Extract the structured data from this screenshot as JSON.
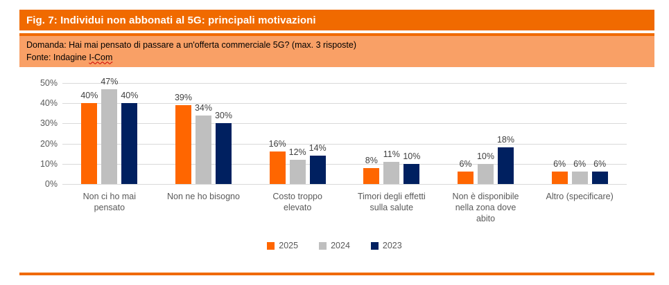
{
  "figure": {
    "title": "Fig. 7: Individui non abbonati al 5G: principali motivazioni",
    "question": "Domanda: Hai mai pensato di passare a un'offerta commerciale 5G? (max. 3 risposte)",
    "source_prefix": "Fonte: Indagine ",
    "source_word": "I-Com"
  },
  "colors": {
    "header_orange": "#f06a00",
    "subtitle_band_orange": "#f9a066",
    "bar_orange": "#ff6600",
    "bar_gray": "#bfbfbf",
    "bar_navy": "#002060",
    "gridline": "#d9d9d9",
    "axis_text": "#595959",
    "data_label_text": "#404040"
  },
  "chart_data": {
    "type": "bar",
    "title": "Fig. 7: Individui non abbonati al 5G: principali motivazioni",
    "categories": [
      "Non ci ho mai pensato",
      "Non ne ho bisogno",
      "Costo troppo elevato",
      "Timori degli effetti sulla salute",
      "Non è disponibile nella zona dove abito",
      "Altro (specificare)"
    ],
    "category_lines": [
      [
        "Non ci ho mai",
        "pensato"
      ],
      [
        "Non ne ho bisogno"
      ],
      [
        "Costo troppo",
        "elevato"
      ],
      [
        "Timori degli effetti",
        "sulla salute"
      ],
      [
        "Non è disponibile",
        "nella zona dove",
        "abito"
      ],
      [
        "Altro (specificare)"
      ]
    ],
    "series": [
      {
        "name": "2025",
        "color": "#ff6600",
        "values": [
          40,
          39,
          16,
          8,
          6,
          6
        ]
      },
      {
        "name": "2024",
        "color": "#bfbfbf",
        "values": [
          47,
          34,
          12,
          11,
          10,
          6
        ]
      },
      {
        "name": "2023",
        "color": "#002060",
        "values": [
          40,
          30,
          14,
          10,
          18,
          6
        ]
      }
    ],
    "xlabel": "",
    "ylabel": "",
    "ylim": [
      0,
      50
    ],
    "yticks": [
      0,
      10,
      20,
      30,
      40,
      50
    ],
    "ytick_suffix": "%",
    "data_label_suffix": "%",
    "grid": true,
    "data_labels": true,
    "legend_position": "bottom"
  }
}
